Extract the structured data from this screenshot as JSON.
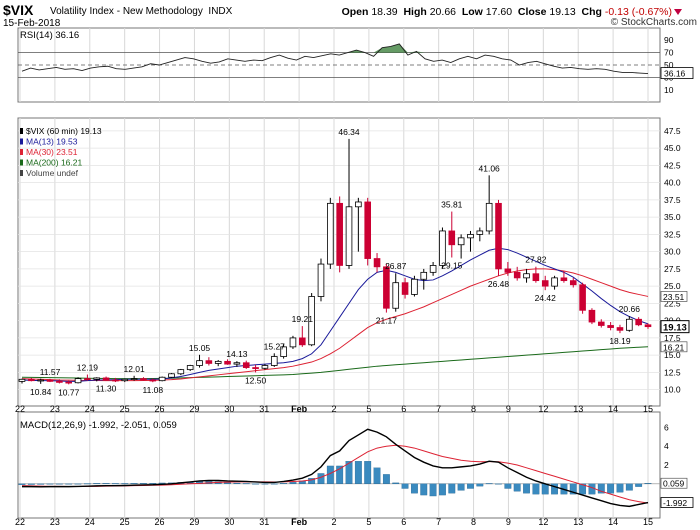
{
  "header": {
    "symbol": "$VIX",
    "name": "Volatility Index - New Methodology",
    "exchange": "INDX",
    "date": "15-Feb-2018",
    "open_label": "Open",
    "open": "18.39",
    "high_label": "High",
    "high": "20.66",
    "low_label": "Low",
    "low": "17.60",
    "close_label": "Close",
    "close": "19.13",
    "chg_label": "Chg",
    "chg": "-0.13 (-0.67%)",
    "logo": "© StockCharts.com"
  },
  "colors": {
    "up": "#000000",
    "down": "#cc0033",
    "ma13": "#1a1a9a",
    "ma30": "#dd2233",
    "ma200": "#1a6a1a",
    "rsi_fill": "#4a8a4a",
    "macd_line": "#000000",
    "macd_signal": "#dd2233",
    "histogram": "#3a8abf"
  },
  "chart_data": [
    {
      "type": "line",
      "title": "RSI(14) 36.16",
      "y_ticks": [
        "90",
        "70",
        "50",
        "30",
        "10"
      ],
      "ylim": [
        0,
        100
      ],
      "current": "36.16",
      "reference_lines": [
        70,
        50,
        30
      ],
      "values": [
        40,
        45,
        42,
        44,
        46,
        43,
        44,
        41,
        45,
        47,
        48,
        44,
        43,
        45,
        47,
        52,
        50,
        54,
        58,
        62,
        60,
        56,
        53,
        55,
        60,
        58,
        56,
        58,
        57,
        62,
        66,
        61,
        58,
        64,
        62,
        65,
        68,
        66,
        70,
        74,
        70,
        64,
        78,
        80,
        84,
        66,
        72,
        60,
        56,
        58,
        54,
        60,
        64,
        60,
        66,
        64,
        60,
        58,
        50,
        54,
        56,
        52,
        48,
        45,
        46,
        44,
        43,
        44,
        43,
        40,
        38,
        38,
        37,
        36.2
      ]
    },
    {
      "type": "candlestick",
      "title": "$VIX (60 min) 19.13",
      "legend": [
        "$VIX (60 min) 19.13",
        "MA(13) 19.53",
        "MA(30) 23.51",
        "MA(200) 16.21",
        "Volume undef"
      ],
      "y_ticks": [
        "47.5",
        "45.0",
        "42.5",
        "40.0",
        "37.5",
        "35.0",
        "32.5",
        "30.0",
        "27.5",
        "25.0",
        "22.5",
        "20.0",
        "17.5",
        "15.0",
        "12.5",
        "10.0"
      ],
      "ylim": [
        8.5,
        48.5
      ],
      "x_ticks": [
        "22",
        "23",
        "24",
        "25",
        "26",
        "29",
        "30",
        "31",
        "Feb",
        "2",
        "5",
        "6",
        "7",
        "8",
        "9",
        "12",
        "13",
        "14",
        "15"
      ],
      "candles": [
        [
          11.2,
          11.6,
          10.9,
          11.5
        ],
        [
          11.5,
          11.7,
          11.2,
          11.3
        ],
        [
          11.3,
          11.6,
          10.84,
          11.4
        ],
        [
          11.4,
          11.57,
          11.1,
          11.2
        ],
        [
          11.2,
          11.5,
          10.9,
          11.1
        ],
        [
          11.1,
          11.3,
          10.77,
          11.0
        ],
        [
          11.0,
          11.8,
          10.9,
          11.6
        ],
        [
          11.6,
          12.19,
          11.3,
          11.5
        ],
        [
          11.5,
          11.8,
          11.2,
          11.7
        ],
        [
          11.7,
          11.9,
          11.3,
          11.4
        ],
        [
          11.4,
          11.7,
          11.1,
          11.3
        ],
        [
          11.3,
          11.6,
          11.1,
          11.5
        ],
        [
          11.5,
          12.01,
          11.3,
          11.6
        ],
        [
          11.6,
          11.8,
          11.3,
          11.4
        ],
        [
          11.4,
          11.6,
          11.08,
          11.3
        ],
        [
          11.3,
          11.9,
          11.2,
          11.8
        ],
        [
          11.8,
          12.4,
          11.7,
          12.3
        ],
        [
          12.3,
          13.0,
          12.1,
          12.9
        ],
        [
          12.9,
          13.6,
          12.7,
          13.5
        ],
        [
          13.5,
          15.05,
          13.2,
          14.2
        ],
        [
          14.2,
          14.7,
          13.5,
          13.8
        ],
        [
          13.8,
          14.3,
          13.4,
          14.1
        ],
        [
          14.1,
          14.4,
          13.6,
          13.7
        ],
        [
          13.7,
          14.13,
          13.3,
          13.9
        ],
        [
          13.9,
          14.2,
          13.0,
          13.2
        ],
        [
          13.2,
          13.6,
          12.5,
          13.1
        ],
        [
          13.1,
          13.7,
          12.9,
          13.5
        ],
        [
          13.5,
          15.27,
          13.3,
          14.8
        ],
        [
          14.8,
          16.6,
          14.5,
          16.2
        ],
        [
          16.2,
          17.8,
          15.9,
          17.5
        ],
        [
          17.5,
          19.21,
          16.2,
          16.5
        ],
        [
          16.5,
          24.0,
          16.3,
          23.5
        ],
        [
          23.5,
          29.0,
          22.8,
          28.2
        ],
        [
          28.2,
          37.8,
          27.5,
          37.0
        ],
        [
          37.0,
          38.0,
          27.0,
          28.0
        ],
        [
          28.0,
          46.34,
          27.5,
          36.5
        ],
        [
          36.5,
          37.8,
          30.0,
          37.2
        ],
        [
          37.2,
          37.8,
          28.0,
          29.0
        ],
        [
          29.0,
          29.8,
          27.0,
          27.8
        ],
        [
          27.8,
          28.2,
          21.17,
          21.8
        ],
        [
          21.8,
          26.87,
          21.3,
          25.5
        ],
        [
          25.5,
          26.2,
          23.2,
          23.8
        ],
        [
          23.8,
          26.5,
          23.5,
          26.0
        ],
        [
          26.0,
          27.5,
          24.5,
          27.0
        ],
        [
          27.0,
          28.5,
          26.5,
          28.0
        ],
        [
          28.0,
          33.5,
          27.5,
          33.0
        ],
        [
          33.0,
          35.81,
          29.15,
          31.0
        ],
        [
          31.0,
          32.5,
          29.0,
          32.0
        ],
        [
          32.0,
          33.0,
          30.0,
          32.5
        ],
        [
          32.5,
          33.5,
          31.5,
          33.0
        ],
        [
          33.0,
          41.06,
          32.5,
          37.0
        ],
        [
          37.0,
          37.5,
          26.48,
          27.5
        ],
        [
          27.5,
          28.5,
          26.5,
          27.0
        ],
        [
          27.0,
          27.8,
          25.8,
          26.2
        ],
        [
          26.2,
          27.5,
          25.5,
          26.8
        ],
        [
          26.8,
          27.82,
          25.5,
          25.8
        ],
        [
          25.8,
          26.5,
          24.42,
          25.0
        ],
        [
          25.0,
          26.5,
          24.5,
          26.2
        ],
        [
          26.2,
          27.2,
          25.5,
          25.8
        ],
        [
          25.8,
          26.2,
          24.8,
          25.2
        ],
        [
          25.2,
          25.5,
          21.0,
          21.5
        ],
        [
          21.5,
          21.8,
          19.5,
          19.8
        ],
        [
          19.8,
          20.2,
          19.0,
          19.3
        ],
        [
          19.3,
          19.8,
          18.6,
          19.0
        ],
        [
          19.0,
          19.4,
          18.19,
          18.6
        ],
        [
          18.6,
          20.66,
          18.4,
          20.2
        ],
        [
          20.2,
          20.5,
          19.2,
          19.4
        ],
        [
          19.4,
          19.6,
          18.8,
          19.13
        ]
      ],
      "ma13": [
        11.4,
        11.35,
        11.3,
        11.3,
        11.25,
        11.2,
        11.2,
        11.3,
        11.4,
        11.4,
        11.45,
        11.5,
        11.5,
        11.5,
        11.5,
        11.55,
        11.7,
        11.9,
        12.2,
        12.5,
        12.8,
        13.0,
        13.2,
        13.4,
        13.5,
        13.6,
        13.7,
        13.8,
        13.9,
        14.1,
        14.5,
        15.2,
        16.5,
        18.5,
        20.5,
        22.5,
        24.5,
        26.0,
        27.0,
        27.3,
        27.0,
        26.5,
        26.0,
        25.8,
        25.9,
        26.5,
        27.2,
        28.0,
        28.8,
        29.5,
        30.2,
        30.5,
        30.3,
        29.8,
        29.2,
        28.6,
        28.0,
        27.5,
        27.0,
        26.3,
        25.3,
        24.3,
        23.2,
        22.2,
        21.3,
        20.6,
        20.0,
        19.53
      ],
      "ma30": [
        11.6,
        11.55,
        11.5,
        11.45,
        11.4,
        11.38,
        11.35,
        11.33,
        11.32,
        11.3,
        11.3,
        11.3,
        11.3,
        11.32,
        11.35,
        11.4,
        11.45,
        11.55,
        11.7,
        11.85,
        12.0,
        12.15,
        12.3,
        12.45,
        12.6,
        12.75,
        12.9,
        13.05,
        13.2,
        13.4,
        13.7,
        14.0,
        14.5,
        15.2,
        16.0,
        17.0,
        18.0,
        19.0,
        19.7,
        20.2,
        20.6,
        21.0,
        21.5,
        22.0,
        22.6,
        23.2,
        23.8,
        24.4,
        25.0,
        25.5,
        26.0,
        26.5,
        26.9,
        27.2,
        27.4,
        27.5,
        27.5,
        27.4,
        27.2,
        26.9,
        26.5,
        26.0,
        25.5,
        25.0,
        24.5,
        24.1,
        23.8,
        23.51
      ],
      "ma200": [
        11.8,
        11.78,
        11.76,
        11.74,
        11.72,
        11.7,
        11.68,
        11.66,
        11.64,
        11.62,
        11.6,
        11.6,
        11.6,
        11.6,
        11.62,
        11.64,
        11.66,
        11.7,
        11.74,
        11.78,
        11.82,
        11.86,
        11.9,
        11.94,
        11.98,
        12.02,
        12.06,
        12.1,
        12.15,
        12.2,
        12.3,
        12.4,
        12.5,
        12.65,
        12.8,
        12.95,
        13.1,
        13.25,
        13.4,
        13.5,
        13.6,
        13.7,
        13.8,
        13.9,
        14.0,
        14.1,
        14.2,
        14.3,
        14.4,
        14.5,
        14.6,
        14.7,
        14.8,
        14.9,
        15.0,
        15.1,
        15.2,
        15.3,
        15.4,
        15.5,
        15.6,
        15.7,
        15.8,
        15.9,
        16.0,
        16.08,
        16.15,
        16.21
      ],
      "annotations": [
        {
          "i": 2,
          "text": "10.84",
          "pos": "below"
        },
        {
          "i": 3,
          "text": "11.57",
          "pos": "above"
        },
        {
          "i": 5,
          "text": "10.77",
          "pos": "below"
        },
        {
          "i": 7,
          "text": "12.19",
          "pos": "above"
        },
        {
          "i": 9,
          "text": "11.30",
          "pos": "below"
        },
        {
          "i": 12,
          "text": "12.01",
          "pos": "above"
        },
        {
          "i": 14,
          "text": "11.08",
          "pos": "below"
        },
        {
          "i": 19,
          "text": "15.05",
          "pos": "above"
        },
        {
          "i": 23,
          "text": "14.13",
          "pos": "above"
        },
        {
          "i": 25,
          "text": "12.50",
          "pos": "below"
        },
        {
          "i": 27,
          "text": "15.27",
          "pos": "above"
        },
        {
          "i": 30,
          "text": "19.21",
          "pos": "above"
        },
        {
          "i": 35,
          "text": "46.34",
          "pos": "above"
        },
        {
          "i": 39,
          "text": "21.17",
          "pos": "below"
        },
        {
          "i": 40,
          "text": "26.87",
          "pos": "above"
        },
        {
          "i": 46,
          "text": "35.81",
          "pos": "above"
        },
        {
          "i": 46,
          "text": "29.15",
          "pos": "below"
        },
        {
          "i": 50,
          "text": "41.06",
          "pos": "above"
        },
        {
          "i": 51,
          "text": "26.48",
          "pos": "below"
        },
        {
          "i": 55,
          "text": "27.82",
          "pos": "above"
        },
        {
          "i": 56,
          "text": "24.42",
          "pos": "below"
        },
        {
          "i": 64,
          "text": "18.19",
          "pos": "below"
        },
        {
          "i": 65,
          "text": "20.66",
          "pos": "above"
        }
      ],
      "last_labels": [
        {
          "text": "23.51",
          "value": 23.51,
          "style": "outline"
        },
        {
          "text": "19.13",
          "value": 19.13,
          "style": "bold"
        },
        {
          "text": "16.21",
          "value": 16.21,
          "style": "outline"
        }
      ]
    },
    {
      "type": "line",
      "title": "MACD(12,26,9) -1.992, -2.051, 0.059",
      "y_ticks": [
        "6",
        "4",
        "2",
        "0",
        "-2"
      ],
      "ylim": [
        -3,
        7
      ],
      "current": [
        "-1.992",
        "0.059"
      ],
      "macd": [
        -0.3,
        -0.3,
        -0.32,
        -0.3,
        -0.3,
        -0.3,
        -0.28,
        -0.25,
        -0.22,
        -0.2,
        -0.2,
        -0.18,
        -0.15,
        -0.12,
        -0.1,
        -0.05,
        0.0,
        0.1,
        0.2,
        0.3,
        0.35,
        0.35,
        0.3,
        0.28,
        0.25,
        0.2,
        0.15,
        0.15,
        0.25,
        0.4,
        0.6,
        1.0,
        1.8,
        3.0,
        3.5,
        4.6,
        5.2,
        5.8,
        5.5,
        5.0,
        4.2,
        3.5,
        2.8,
        2.3,
        1.9,
        1.7,
        1.7,
        1.8,
        1.9,
        2.1,
        2.4,
        2.3,
        1.7,
        1.2,
        0.7,
        0.3,
        0.0,
        -0.3,
        -0.6,
        -0.9,
        -1.2,
        -1.5,
        -1.8,
        -2.1,
        -2.3,
        -2.4,
        -2.2,
        -1.992
      ],
      "signal": [
        -0.2,
        -0.22,
        -0.25,
        -0.27,
        -0.28,
        -0.29,
        -0.29,
        -0.28,
        -0.27,
        -0.25,
        -0.24,
        -0.22,
        -0.2,
        -0.18,
        -0.16,
        -0.14,
        -0.1,
        -0.05,
        0.0,
        0.05,
        0.1,
        0.15,
        0.18,
        0.2,
        0.21,
        0.21,
        0.2,
        0.19,
        0.2,
        0.24,
        0.3,
        0.42,
        0.7,
        1.1,
        1.6,
        2.2,
        2.8,
        3.4,
        3.8,
        4.0,
        4.1,
        4.0,
        3.8,
        3.5,
        3.2,
        2.9,
        2.7,
        2.5,
        2.4,
        2.35,
        2.36,
        2.35,
        2.2,
        2.0,
        1.7,
        1.4,
        1.1,
        0.8,
        0.5,
        0.2,
        -0.1,
        -0.4,
        -0.8,
        -1.1,
        -1.4,
        -1.7,
        -1.9,
        -2.051
      ]
    }
  ]
}
